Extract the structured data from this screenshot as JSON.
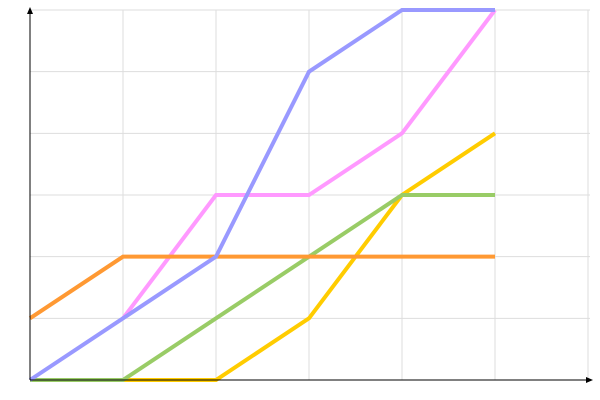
{
  "chart_data": {
    "type": "line",
    "title": "",
    "xlabel": "",
    "ylabel": "",
    "x": [
      0,
      1,
      2,
      3,
      4,
      5
    ],
    "xlim": [
      0,
      6
    ],
    "ylim": [
      0,
      6
    ],
    "grid": true,
    "legend": "none",
    "series": [
      {
        "color": "#ffcc00",
        "x": [
          1,
          2,
          3,
          4,
          5
        ],
        "values": [
          0,
          0,
          1,
          3,
          4
        ]
      },
      {
        "color": "#99cc66",
        "x": [
          0,
          1,
          2,
          3,
          4,
          5
        ],
        "values": [
          0,
          0,
          1,
          2,
          3,
          3
        ]
      },
      {
        "color": "#ff99ff",
        "x": [
          1,
          2,
          3,
          4,
          5
        ],
        "values": [
          1,
          3,
          3,
          4,
          6
        ]
      },
      {
        "color": "#ff9933",
        "x": [
          0,
          1,
          2,
          3,
          4,
          5
        ],
        "values": [
          1,
          2,
          2,
          2,
          2,
          2
        ]
      },
      {
        "color": "#9999ff",
        "x": [
          0,
          1,
          2,
          3,
          4,
          5
        ],
        "values": [
          0,
          1,
          2,
          5,
          6,
          6
        ]
      }
    ]
  }
}
